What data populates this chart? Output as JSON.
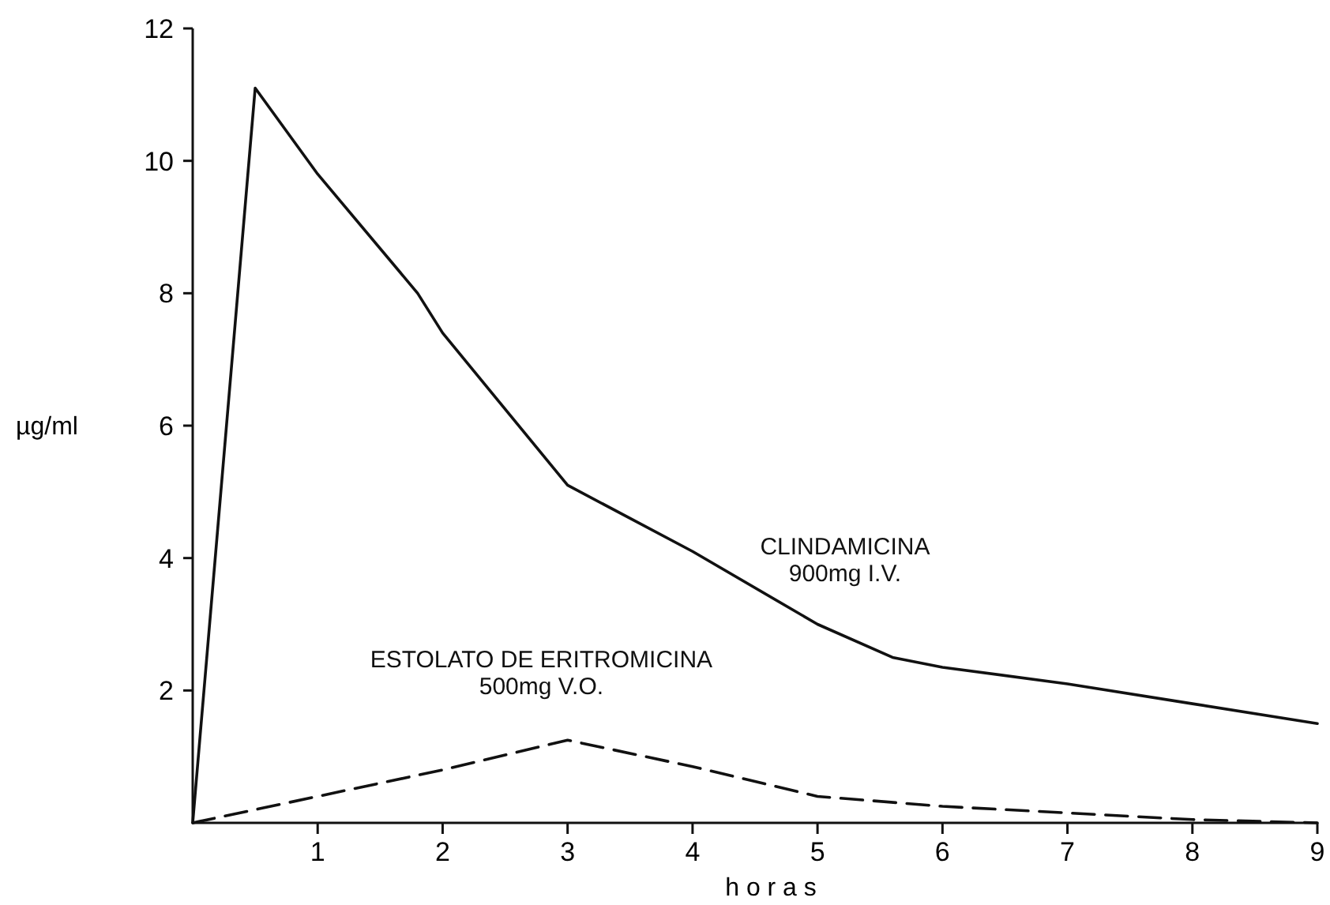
{
  "chart_data": {
    "type": "line",
    "xlabel": "h o r a s",
    "ylabel": "µg/ml",
    "xlim": [
      0,
      9
    ],
    "ylim": [
      0,
      12
    ],
    "xticks": [
      1,
      2,
      3,
      4,
      5,
      6,
      7,
      8,
      9
    ],
    "yticks": [
      2,
      4,
      6,
      8,
      10,
      12
    ],
    "marker": "none",
    "series": [
      {
        "name": "CLINDAMICINA\n900mg I.V.",
        "color": "#111111",
        "line_style": "solid",
        "x": [
          0,
          0.5,
          1,
          1.8,
          2,
          3,
          4,
          5,
          5.6,
          6,
          7,
          8,
          9
        ],
        "values": [
          0,
          11.1,
          9.8,
          8.0,
          7.4,
          5.1,
          4.1,
          3.0,
          2.5,
          2.35,
          2.1,
          1.8,
          1.5
        ]
      },
      {
        "name": "ESTOLATO DE ERITROMICINA\n500mg V.O.",
        "color": "#111111",
        "line_style": "dashed",
        "x": [
          0,
          1,
          2,
          3,
          4,
          5,
          6,
          7,
          8,
          9
        ],
        "values": [
          0,
          0.4,
          0.8,
          1.25,
          0.85,
          0.4,
          0.25,
          0.15,
          0.05,
          0
        ]
      }
    ]
  }
}
